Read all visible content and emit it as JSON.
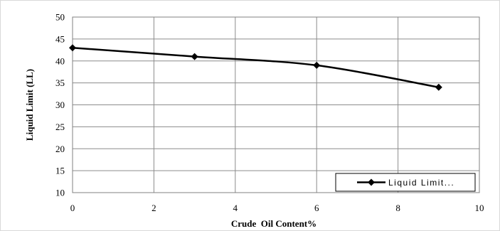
{
  "chart_data": {
    "type": "line",
    "xlabel": "Crude  Oil Content%",
    "ylabel": "Liquid Limit (LL)",
    "xlim": [
      0,
      10
    ],
    "ylim": [
      10,
      50
    ],
    "x_ticks": [
      0,
      2,
      4,
      6,
      8,
      10
    ],
    "y_ticks": [
      10,
      15,
      20,
      25,
      30,
      35,
      40,
      45,
      50
    ],
    "grid": true,
    "legend_position": "bottom-right",
    "series": [
      {
        "name": "Liquid Limit...",
        "color": "#000000",
        "marker": "diamond",
        "smooth": true,
        "x": [
          0,
          3,
          6,
          9
        ],
        "y": [
          43,
          41,
          39,
          34
        ]
      }
    ]
  }
}
